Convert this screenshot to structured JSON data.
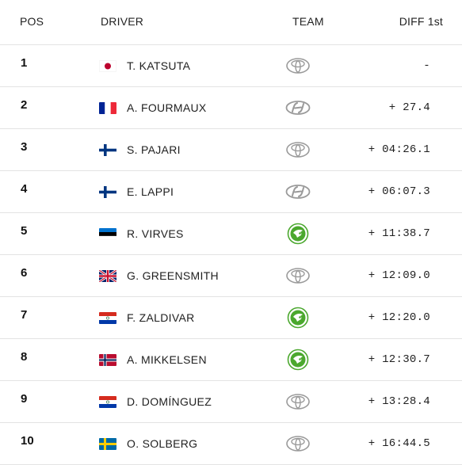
{
  "header": {
    "pos": "POS",
    "driver": "DRIVER",
    "team": "TEAM",
    "diff": "DIFF 1st"
  },
  "rows": [
    {
      "pos": "1",
      "driver": "T. KATSUTA",
      "flag": "japan-flag-icon",
      "team": "toyota-logo-icon",
      "diff": "-"
    },
    {
      "pos": "2",
      "driver": "A. FOURMAUX",
      "flag": "france-flag-icon",
      "team": "hyundai-logo-icon",
      "diff": "+ 27.4"
    },
    {
      "pos": "3",
      "driver": "S. PAJARI",
      "flag": "finland-flag-icon",
      "team": "toyota-logo-icon",
      "diff": "+ 04:26.1"
    },
    {
      "pos": "4",
      "driver": "E. LAPPI",
      "flag": "finland-flag-icon",
      "team": "hyundai-logo-icon",
      "diff": "+ 06:07.3"
    },
    {
      "pos": "5",
      "driver": "R. VIRVES",
      "flag": "estonia-flag-icon",
      "team": "skoda-logo-icon",
      "diff": "+ 11:38.7"
    },
    {
      "pos": "6",
      "driver": "G. GREENSMITH",
      "flag": "uk-flag-icon",
      "team": "toyota-logo-icon",
      "diff": "+ 12:09.0"
    },
    {
      "pos": "7",
      "driver": "F. ZALDIVAR",
      "flag": "paraguay-flag-icon",
      "team": "skoda-logo-icon",
      "diff": "+ 12:20.0"
    },
    {
      "pos": "8",
      "driver": "A. MIKKELSEN",
      "flag": "norway-flag-icon",
      "team": "skoda-logo-icon",
      "diff": "+ 12:30.7"
    },
    {
      "pos": "9",
      "driver": "D. DOMÍNGUEZ",
      "flag": "paraguay-flag-icon",
      "team": "toyota-logo-icon",
      "diff": "+ 13:28.4"
    },
    {
      "pos": "10",
      "driver": "O. SOLBERG",
      "flag": "sweden-flag-icon",
      "team": "toyota-logo-icon",
      "diff": "+ 16:44.5"
    }
  ],
  "colors": {
    "divider": "#e3e3e3",
    "skoda_green": "#4ba82e",
    "logo_grey": "#9a9a9a"
  }
}
